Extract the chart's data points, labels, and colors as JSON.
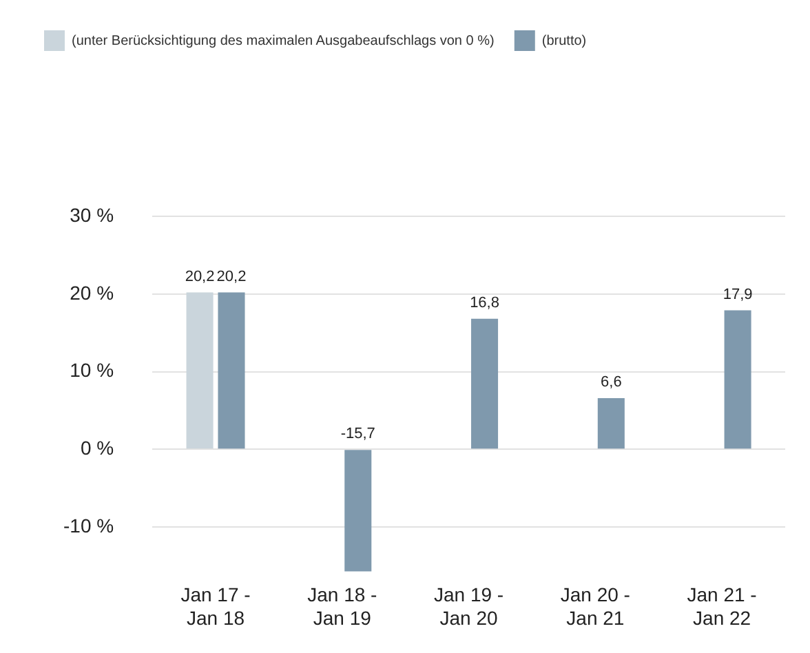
{
  "chart_data": {
    "type": "bar",
    "categories": [
      "Jan 17 - Jan 18",
      "Jan 18 - Jan 19",
      "Jan 19 - Jan 20",
      "Jan 20 - Jan 21",
      "Jan 21 - Jan 22"
    ],
    "series": [
      {
        "name": "(unter Berücksichtigung des maximalen Ausgabeaufschlags von 0 %)",
        "color": "#cad5dc",
        "values": [
          20.2,
          null,
          null,
          null,
          null
        ],
        "value_labels": [
          "20,2",
          null,
          null,
          null,
          null
        ]
      },
      {
        "name": "(brutto)",
        "color": "#7f99ad",
        "values": [
          20.2,
          -15.7,
          16.8,
          6.6,
          17.9
        ],
        "value_labels": [
          "20,2",
          "-15,7",
          "16,8",
          "6,6",
          "17,9"
        ]
      }
    ],
    "ylim": [
      -16,
      30
    ],
    "yticks": [
      {
        "value": -10,
        "label": "-10 %"
      },
      {
        "value": 0,
        "label": "0 %"
      },
      {
        "value": 10,
        "label": "10 %"
      },
      {
        "value": 20,
        "label": "20 %"
      },
      {
        "value": 30,
        "label": "30 %"
      }
    ],
    "grid": "y",
    "legend": "top left"
  }
}
